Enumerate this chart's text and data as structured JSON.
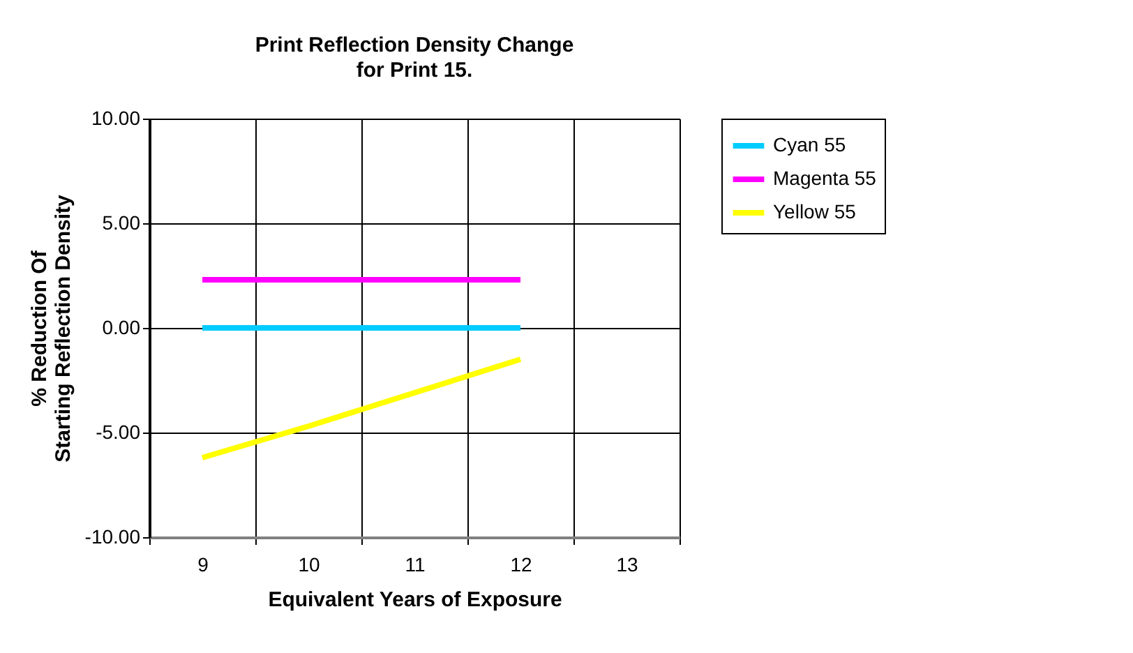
{
  "chart_data": {
    "type": "line",
    "title": "Print Reflection Density Change",
    "subtitle": "for Print 15.",
    "xlabel": "Equivalent Years of Exposure",
    "ylabel": "% Reduction Of\nStarting Reflection Density",
    "categories": [
      "9",
      "10",
      "11",
      "12",
      "13"
    ],
    "series": [
      {
        "name": "Cyan 55",
        "color": "#00ccff",
        "values": [
          0.0,
          0.0,
          0.0,
          0.0,
          null
        ]
      },
      {
        "name": "Magenta 55",
        "color": "#ff00ff",
        "values": [
          2.3,
          2.3,
          2.3,
          2.3,
          null
        ]
      },
      {
        "name": "Yellow 55",
        "color": "#ffff00",
        "values": [
          -6.2,
          -4.7,
          -3.1,
          -1.5,
          null
        ]
      }
    ],
    "ylim": [
      -10,
      10
    ],
    "yticks": [
      {
        "value": -10,
        "label": "-10.00"
      },
      {
        "value": -5,
        "label": "-5.00"
      },
      {
        "value": 0,
        "label": "0.00"
      },
      {
        "value": 5,
        "label": "5.00"
      },
      {
        "value": 10,
        "label": "10.00"
      }
    ],
    "grid": true,
    "legend": "right",
    "marker": "none",
    "line_style": "solid"
  }
}
